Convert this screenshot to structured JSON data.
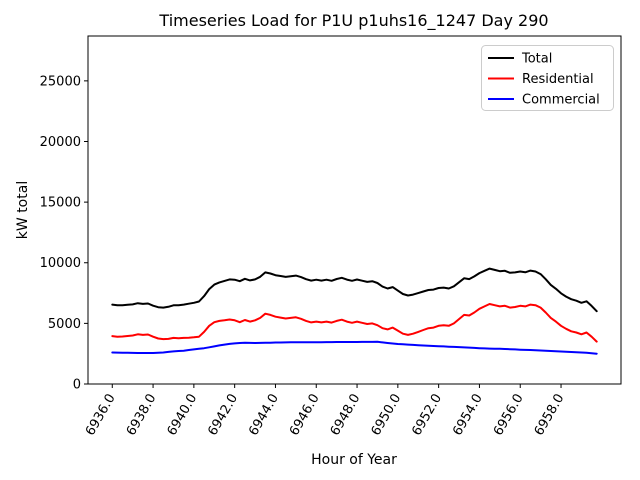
{
  "window": {
    "background": "#ffffff"
  },
  "chart_data": {
    "type": "line",
    "title": "Timeseries Load for P1U p1uhs16_1247  Day 290",
    "xlabel": "Hour of Year",
    "ylabel": "kW total",
    "grid": false,
    "legend_position": "upper right",
    "legend_border_color": "#cccccc",
    "xlim": [
      6934.81,
      6960.94
    ],
    "ylim": [
      0,
      28700
    ],
    "xticks": [
      6936,
      6938,
      6940,
      6942,
      6944,
      6946,
      6948,
      6950,
      6952,
      6954,
      6956,
      6958
    ],
    "xtick_labels": [
      "6936.0",
      "6938.0",
      "6940.0",
      "6942.0",
      "6944.0",
      "6946.0",
      "6948.0",
      "6950.0",
      "6952.0",
      "6954.0",
      "6956.0",
      "6958.0"
    ],
    "xtick_rotation_deg": 60,
    "yticks": [
      0,
      5000,
      10000,
      15000,
      20000,
      25000
    ],
    "ytick_labels": [
      "0",
      "5000",
      "10000",
      "15000",
      "20000",
      "25000"
    ],
    "x_start": 6936.0,
    "x_step": 0.25,
    "n_points": 96,
    "series": [
      {
        "name": "Total",
        "color": "#000000",
        "values": [
          6550,
          6490,
          6500,
          6530,
          6565,
          6660,
          6610,
          6635,
          6460,
          6330,
          6300,
          6370,
          6490,
          6500,
          6550,
          6620,
          6700,
          6800,
          7250,
          7830,
          8200,
          8380,
          8500,
          8630,
          8600,
          8480,
          8680,
          8540,
          8630,
          8840,
          9200,
          9110,
          8970,
          8905,
          8830,
          8885,
          8940,
          8820,
          8645,
          8525,
          8600,
          8530,
          8605,
          8515,
          8660,
          8760,
          8610,
          8515,
          8615,
          8520,
          8420,
          8475,
          8330,
          8030,
          7880,
          7990,
          7700,
          7425,
          7300,
          7375,
          7500,
          7625,
          7750,
          7785,
          7920,
          7950,
          7880,
          8060,
          8390,
          8720,
          8650,
          8875,
          9150,
          9335,
          9520,
          9410,
          9300,
          9335,
          9170,
          9200,
          9280,
          9215,
          9350,
          9280,
          9060,
          8640,
          8170,
          7850,
          7480,
          7210,
          6990,
          6870,
          6700,
          6820,
          6440,
          6000
        ]
      },
      {
        "name": "Residential",
        "color": "#ff0000",
        "values": [
          3950,
          3900,
          3920,
          3960,
          4000,
          4100,
          4050,
          4080,
          3900,
          3750,
          3700,
          3720,
          3800,
          3780,
          3800,
          3820,
          3850,
          3900,
          4300,
          4800,
          5100,
          5200,
          5250,
          5320,
          5250,
          5100,
          5280,
          5150,
          5250,
          5450,
          5800,
          5700,
          5550,
          5480,
          5400,
          5450,
          5500,
          5380,
          5200,
          5080,
          5150,
          5080,
          5150,
          5060,
          5200,
          5300,
          5150,
          5050,
          5150,
          5050,
          4950,
          5000,
          4850,
          4600,
          4500,
          4650,
          4400,
          4150,
          4050,
          4150,
          4300,
          4450,
          4600,
          4650,
          4800,
          4850,
          4800,
          5000,
          5350,
          5700,
          5650,
          5900,
          6200,
          6400,
          6600,
          6500,
          6400,
          6450,
          6300,
          6350,
          6450,
          6400,
          6550,
          6500,
          6300,
          5900,
          5450,
          5150,
          4800,
          4550,
          4350,
          4250,
          4100,
          4250,
          3900,
          3500
        ]
      },
      {
        "name": "Commercial",
        "color": "#0000ff",
        "values": [
          2600,
          2590,
          2580,
          2570,
          2565,
          2560,
          2560,
          2555,
          2560,
          2580,
          2600,
          2650,
          2690,
          2720,
          2750,
          2800,
          2850,
          2900,
          2950,
          3030,
          3100,
          3180,
          3250,
          3310,
          3350,
          3380,
          3400,
          3390,
          3380,
          3390,
          3400,
          3410,
          3420,
          3425,
          3430,
          3435,
          3440,
          3440,
          3445,
          3445,
          3450,
          3450,
          3455,
          3455,
          3460,
          3460,
          3460,
          3465,
          3465,
          3470,
          3470,
          3475,
          3480,
          3430,
          3380,
          3340,
          3300,
          3275,
          3250,
          3225,
          3200,
          3175,
          3150,
          3135,
          3120,
          3100,
          3080,
          3060,
          3040,
          3020,
          3000,
          2975,
          2950,
          2935,
          2920,
          2910,
          2900,
          2885,
          2870,
          2850,
          2830,
          2815,
          2800,
          2780,
          2760,
          2740,
          2720,
          2700,
          2680,
          2660,
          2640,
          2620,
          2600,
          2570,
          2540,
          2500
        ]
      }
    ]
  }
}
